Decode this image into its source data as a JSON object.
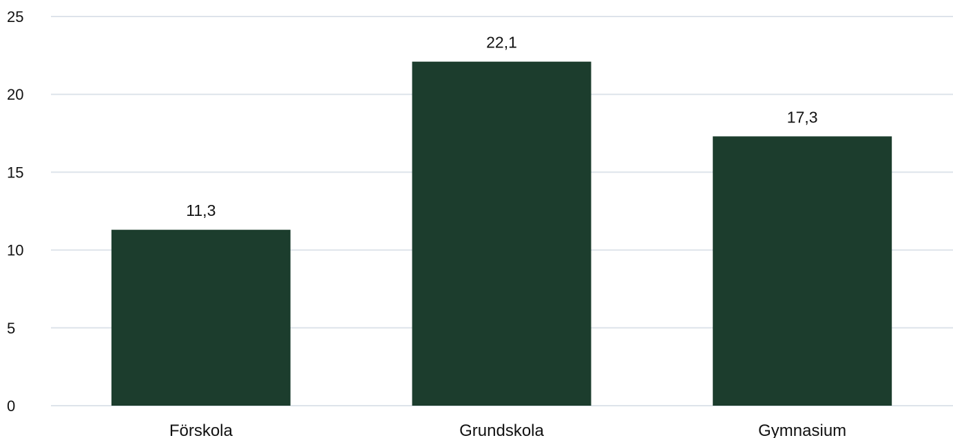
{
  "chart_data": {
    "type": "bar",
    "categories": [
      "Förskola",
      "Grundskola",
      "Gymnasium"
    ],
    "values": [
      11.3,
      22.1,
      17.3
    ],
    "data_labels": [
      "11,3",
      "22,1",
      "17,3"
    ],
    "yticks": [
      0,
      5,
      10,
      15,
      20,
      25
    ],
    "ylim": [
      0,
      25
    ],
    "title": "",
    "xlabel": "",
    "ylabel": "",
    "grid": "horizontal",
    "legend": "none",
    "bar_color": "#1c3d2d"
  }
}
